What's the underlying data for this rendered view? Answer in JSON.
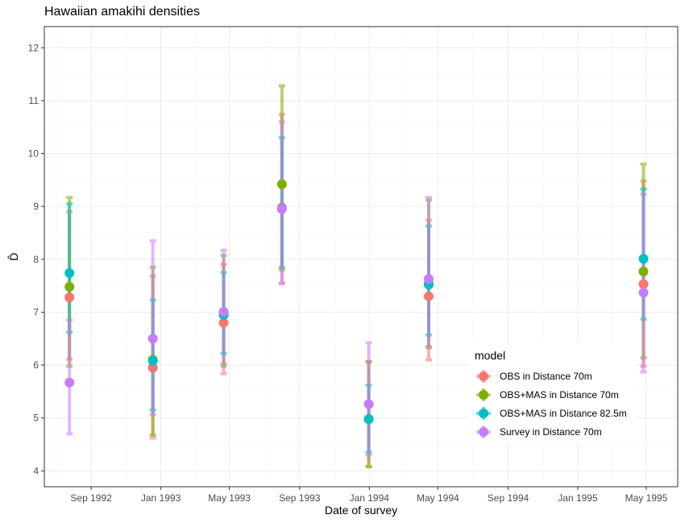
{
  "chart_data": {
    "type": "scatter",
    "title": "Hawaiian amakihi densities",
    "xlabel": "Date of survey",
    "ylabel": "D̂",
    "ylim": [
      3.7,
      12.4
    ],
    "yticks": [
      4,
      5,
      6,
      7,
      8,
      9,
      10,
      11,
      12
    ],
    "xlim": [
      "1992-06-11",
      "1995-06-25"
    ],
    "xticks": [
      {
        "date": "1992-09-01",
        "label": "Sep 1992"
      },
      {
        "date": "1993-01-01",
        "label": "Jan 1993"
      },
      {
        "date": "1993-05-01",
        "label": "May 1993"
      },
      {
        "date": "1993-09-01",
        "label": "Sep 1993"
      },
      {
        "date": "1994-01-01",
        "label": "Jan 1994"
      },
      {
        "date": "1994-05-01",
        "label": "May 1994"
      },
      {
        "date": "1994-09-01",
        "label": "Sep 1994"
      },
      {
        "date": "1995-01-01",
        "label": "Jan 1995"
      },
      {
        "date": "1995-05-01",
        "label": "May 1995"
      }
    ],
    "grid": true,
    "legend": {
      "title": "model",
      "position": "inside-bottom-right"
    },
    "series": [
      {
        "name": "OBS in Distance 70m",
        "color": "#F8766D",
        "points": [
          {
            "x": "1992-07-25",
            "y": 7.28,
            "lo": 6.11,
            "hi": 8.9
          },
          {
            "x": "1992-12-18",
            "y": 5.95,
            "lo": 4.62,
            "hi": 7.68
          },
          {
            "x": "1993-04-21",
            "y": 6.8,
            "lo": 5.84,
            "hi": 7.9
          },
          {
            "x": "1993-08-01",
            "y": 8.98,
            "lo": 7.54,
            "hi": 10.74
          },
          {
            "x": "1993-12-31",
            "y": 4.98,
            "lo": 4.08,
            "hi": 6.06
          },
          {
            "x": "1994-04-15",
            "y": 7.3,
            "lo": 6.1,
            "hi": 8.74
          },
          {
            "x": "1995-04-26",
            "y": 7.53,
            "lo": 5.98,
            "hi": 9.48
          }
        ]
      },
      {
        "name": "OBS+MAS in Distance 70m",
        "color": "#7CAE00",
        "points": [
          {
            "x": "1992-07-25",
            "y": 7.48,
            "lo": 5.98,
            "hi": 9.17
          },
          {
            "x": "1992-12-18",
            "y": 6.1,
            "lo": 4.68,
            "hi": 7.85
          },
          {
            "x": "1993-04-21",
            "y": 6.95,
            "lo": 5.98,
            "hi": 8.07
          },
          {
            "x": "1993-08-01",
            "y": 9.42,
            "lo": 7.8,
            "hi": 11.28
          },
          {
            "x": "1993-12-31",
            "y": 4.98,
            "lo": 4.08,
            "hi": 6.07
          },
          {
            "x": "1994-04-15",
            "y": 7.55,
            "lo": 6.33,
            "hi": 9.12
          },
          {
            "x": "1995-04-26",
            "y": 7.77,
            "lo": 6.14,
            "hi": 9.8
          }
        ]
      },
      {
        "name": "OBS+MAS in Distance 82.5m",
        "color": "#00BFC4",
        "points": [
          {
            "x": "1992-07-25",
            "y": 7.74,
            "lo": 6.62,
            "hi": 9.05
          },
          {
            "x": "1992-12-18",
            "y": 6.08,
            "lo": 5.15,
            "hi": 7.23
          },
          {
            "x": "1993-04-21",
            "y": 6.95,
            "lo": 6.22,
            "hi": 7.75
          },
          {
            "x": "1993-08-01",
            "y": 8.96,
            "lo": 7.85,
            "hi": 10.3
          },
          {
            "x": "1993-12-31",
            "y": 4.98,
            "lo": 4.35,
            "hi": 5.62
          },
          {
            "x": "1994-04-15",
            "y": 7.52,
            "lo": 6.57,
            "hi": 8.63
          },
          {
            "x": "1995-04-26",
            "y": 8.01,
            "lo": 6.87,
            "hi": 9.33
          }
        ]
      },
      {
        "name": "Survey in Distance 70m",
        "color": "#C77CFF",
        "points": [
          {
            "x": "1992-07-25",
            "y": 5.67,
            "lo": 4.7,
            "hi": 6.85
          },
          {
            "x": "1992-12-18",
            "y": 6.5,
            "lo": 5.06,
            "hi": 8.35
          },
          {
            "x": "1993-04-21",
            "y": 7.01,
            "lo": 6.03,
            "hi": 8.17
          },
          {
            "x": "1993-08-01",
            "y": 8.95,
            "lo": 7.55,
            "hi": 10.6
          },
          {
            "x": "1993-12-31",
            "y": 5.26,
            "lo": 4.3,
            "hi": 6.42
          },
          {
            "x": "1994-04-15",
            "y": 7.63,
            "lo": 6.35,
            "hi": 9.17
          },
          {
            "x": "1995-04-26",
            "y": 7.37,
            "lo": 5.87,
            "hi": 9.23
          }
        ]
      }
    ]
  }
}
